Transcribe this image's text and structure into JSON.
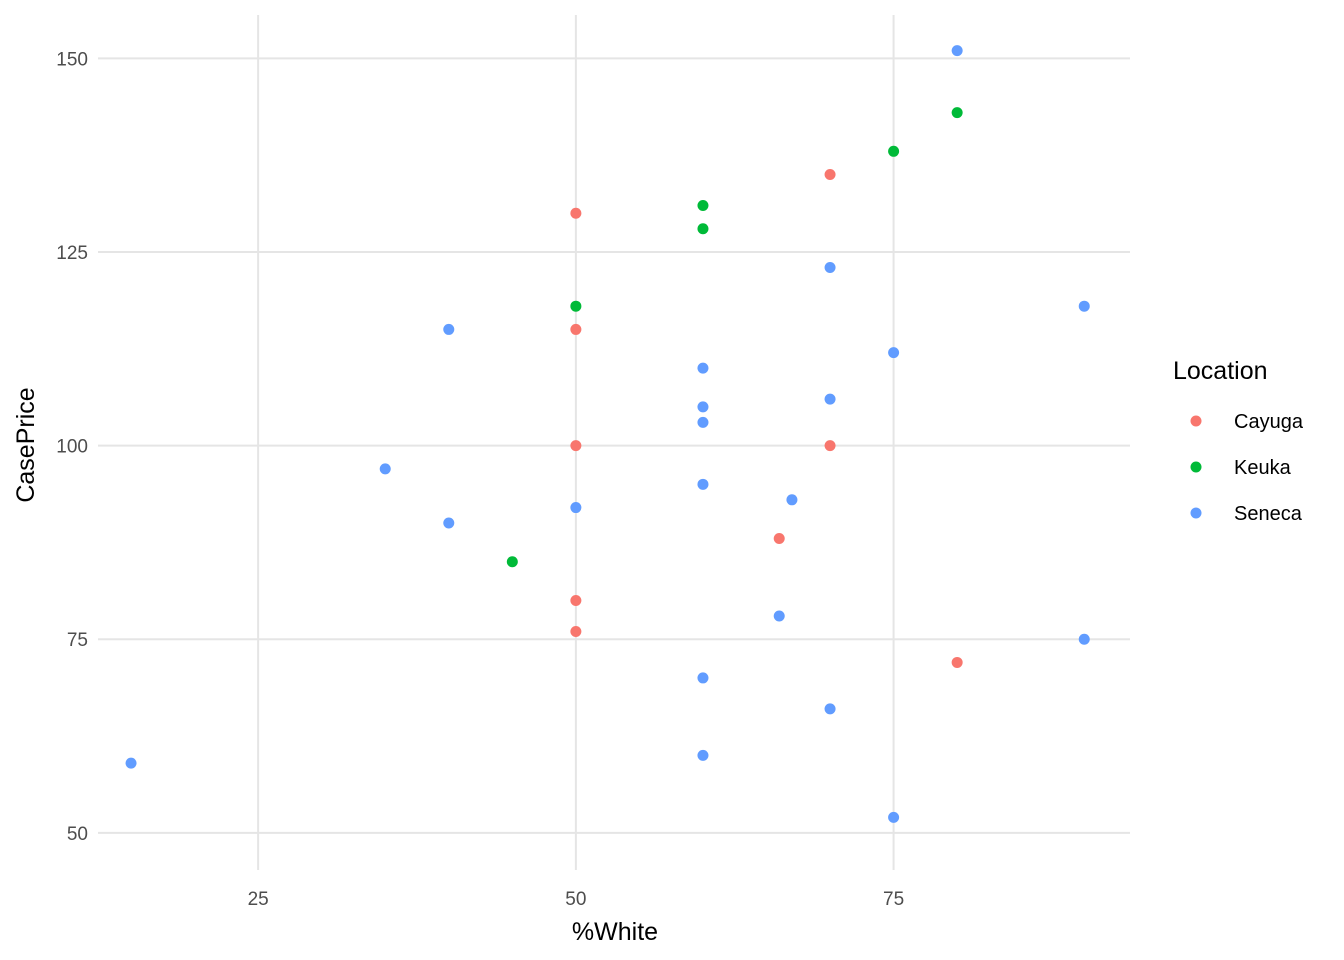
{
  "chart_data": {
    "type": "scatter",
    "title": "",
    "xlabel": "%White",
    "ylabel": "CasePrice",
    "xlim": [
      12.4,
      93.6
    ],
    "ylim": [
      45.2,
      155.6
    ],
    "x_ticks": [
      25,
      50,
      75
    ],
    "y_ticks": [
      50,
      75,
      100,
      125,
      150
    ],
    "x_tick_labels": [
      "25",
      "50",
      "75"
    ],
    "y_tick_labels": [
      "50",
      "75",
      "100",
      "125",
      "150"
    ],
    "grid": true,
    "legend": {
      "title": "Location",
      "placement": "right"
    },
    "series": [
      {
        "name": "Cayuga",
        "color": "#F8766D",
        "points": [
          {
            "x": 50,
            "y": 130
          },
          {
            "x": 50,
            "y": 115
          },
          {
            "x": 50,
            "y": 100
          },
          {
            "x": 50,
            "y": 80
          },
          {
            "x": 50,
            "y": 76
          },
          {
            "x": 66,
            "y": 88
          },
          {
            "x": 70,
            "y": 135
          },
          {
            "x": 70,
            "y": 100
          },
          {
            "x": 80,
            "y": 72
          }
        ]
      },
      {
        "name": "Keuka",
        "color": "#00BA38",
        "points": [
          {
            "x": 45,
            "y": 85
          },
          {
            "x": 50,
            "y": 118
          },
          {
            "x": 60,
            "y": 131
          },
          {
            "x": 60,
            "y": 128
          },
          {
            "x": 75,
            "y": 138
          },
          {
            "x": 80,
            "y": 143
          }
        ]
      },
      {
        "name": "Seneca",
        "color": "#619CFF",
        "points": [
          {
            "x": 15,
            "y": 59
          },
          {
            "x": 35,
            "y": 97
          },
          {
            "x": 40,
            "y": 115
          },
          {
            "x": 40,
            "y": 90
          },
          {
            "x": 50,
            "y": 92
          },
          {
            "x": 60,
            "y": 110
          },
          {
            "x": 60,
            "y": 105
          },
          {
            "x": 60,
            "y": 103
          },
          {
            "x": 60,
            "y": 95
          },
          {
            "x": 60,
            "y": 70
          },
          {
            "x": 60,
            "y": 60
          },
          {
            "x": 66,
            "y": 78
          },
          {
            "x": 67,
            "y": 93
          },
          {
            "x": 70,
            "y": 123
          },
          {
            "x": 70,
            "y": 106
          },
          {
            "x": 70,
            "y": 66
          },
          {
            "x": 75,
            "y": 112
          },
          {
            "x": 75,
            "y": 52
          },
          {
            "x": 80,
            "y": 151
          },
          {
            "x": 90,
            "y": 118
          },
          {
            "x": 90,
            "y": 75
          }
        ]
      }
    ]
  }
}
